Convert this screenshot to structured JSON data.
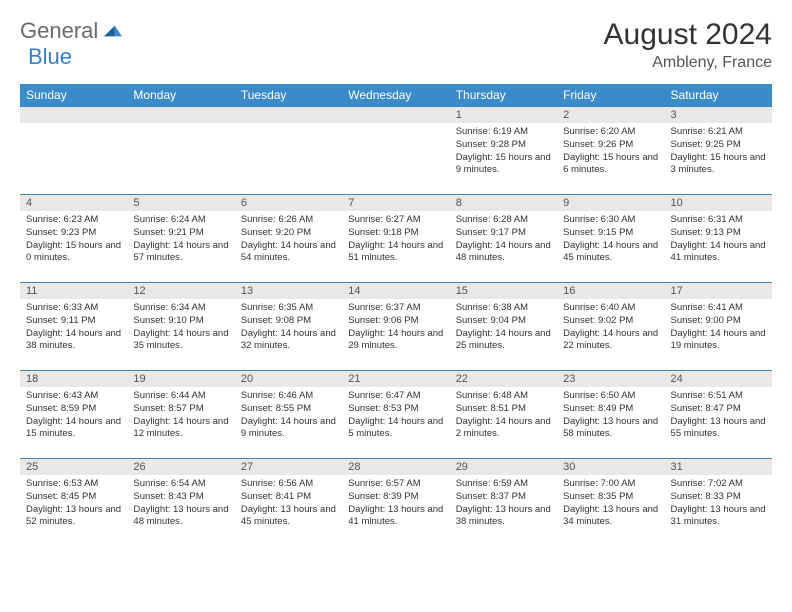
{
  "logo": {
    "text1": "General",
    "text2": "Blue"
  },
  "title": "August 2024",
  "location": "Ambleny, France",
  "weekdays": [
    "Sunday",
    "Monday",
    "Tuesday",
    "Wednesday",
    "Thursday",
    "Friday",
    "Saturday"
  ],
  "colors": {
    "header_bg": "#3b8bc9",
    "daynum_bg": "#e8e8e8",
    "border": "#3b8bc9",
    "logo_gray": "#6b6b6b",
    "logo_blue": "#3b7fc4"
  },
  "weeks": [
    [
      {
        "n": "",
        "sunrise": "",
        "sunset": "",
        "daylight": ""
      },
      {
        "n": "",
        "sunrise": "",
        "sunset": "",
        "daylight": ""
      },
      {
        "n": "",
        "sunrise": "",
        "sunset": "",
        "daylight": ""
      },
      {
        "n": "",
        "sunrise": "",
        "sunset": "",
        "daylight": ""
      },
      {
        "n": "1",
        "sunrise": "Sunrise: 6:19 AM",
        "sunset": "Sunset: 9:28 PM",
        "daylight": "Daylight: 15 hours and 9 minutes."
      },
      {
        "n": "2",
        "sunrise": "Sunrise: 6:20 AM",
        "sunset": "Sunset: 9:26 PM",
        "daylight": "Daylight: 15 hours and 6 minutes."
      },
      {
        "n": "3",
        "sunrise": "Sunrise: 6:21 AM",
        "sunset": "Sunset: 9:25 PM",
        "daylight": "Daylight: 15 hours and 3 minutes."
      }
    ],
    [
      {
        "n": "4",
        "sunrise": "Sunrise: 6:23 AM",
        "sunset": "Sunset: 9:23 PM",
        "daylight": "Daylight: 15 hours and 0 minutes."
      },
      {
        "n": "5",
        "sunrise": "Sunrise: 6:24 AM",
        "sunset": "Sunset: 9:21 PM",
        "daylight": "Daylight: 14 hours and 57 minutes."
      },
      {
        "n": "6",
        "sunrise": "Sunrise: 6:26 AM",
        "sunset": "Sunset: 9:20 PM",
        "daylight": "Daylight: 14 hours and 54 minutes."
      },
      {
        "n": "7",
        "sunrise": "Sunrise: 6:27 AM",
        "sunset": "Sunset: 9:18 PM",
        "daylight": "Daylight: 14 hours and 51 minutes."
      },
      {
        "n": "8",
        "sunrise": "Sunrise: 6:28 AM",
        "sunset": "Sunset: 9:17 PM",
        "daylight": "Daylight: 14 hours and 48 minutes."
      },
      {
        "n": "9",
        "sunrise": "Sunrise: 6:30 AM",
        "sunset": "Sunset: 9:15 PM",
        "daylight": "Daylight: 14 hours and 45 minutes."
      },
      {
        "n": "10",
        "sunrise": "Sunrise: 6:31 AM",
        "sunset": "Sunset: 9:13 PM",
        "daylight": "Daylight: 14 hours and 41 minutes."
      }
    ],
    [
      {
        "n": "11",
        "sunrise": "Sunrise: 6:33 AM",
        "sunset": "Sunset: 9:11 PM",
        "daylight": "Daylight: 14 hours and 38 minutes."
      },
      {
        "n": "12",
        "sunrise": "Sunrise: 6:34 AM",
        "sunset": "Sunset: 9:10 PM",
        "daylight": "Daylight: 14 hours and 35 minutes."
      },
      {
        "n": "13",
        "sunrise": "Sunrise: 6:35 AM",
        "sunset": "Sunset: 9:08 PM",
        "daylight": "Daylight: 14 hours and 32 minutes."
      },
      {
        "n": "14",
        "sunrise": "Sunrise: 6:37 AM",
        "sunset": "Sunset: 9:06 PM",
        "daylight": "Daylight: 14 hours and 29 minutes."
      },
      {
        "n": "15",
        "sunrise": "Sunrise: 6:38 AM",
        "sunset": "Sunset: 9:04 PM",
        "daylight": "Daylight: 14 hours and 25 minutes."
      },
      {
        "n": "16",
        "sunrise": "Sunrise: 6:40 AM",
        "sunset": "Sunset: 9:02 PM",
        "daylight": "Daylight: 14 hours and 22 minutes."
      },
      {
        "n": "17",
        "sunrise": "Sunrise: 6:41 AM",
        "sunset": "Sunset: 9:00 PM",
        "daylight": "Daylight: 14 hours and 19 minutes."
      }
    ],
    [
      {
        "n": "18",
        "sunrise": "Sunrise: 6:43 AM",
        "sunset": "Sunset: 8:59 PM",
        "daylight": "Daylight: 14 hours and 15 minutes."
      },
      {
        "n": "19",
        "sunrise": "Sunrise: 6:44 AM",
        "sunset": "Sunset: 8:57 PM",
        "daylight": "Daylight: 14 hours and 12 minutes."
      },
      {
        "n": "20",
        "sunrise": "Sunrise: 6:46 AM",
        "sunset": "Sunset: 8:55 PM",
        "daylight": "Daylight: 14 hours and 9 minutes."
      },
      {
        "n": "21",
        "sunrise": "Sunrise: 6:47 AM",
        "sunset": "Sunset: 8:53 PM",
        "daylight": "Daylight: 14 hours and 5 minutes."
      },
      {
        "n": "22",
        "sunrise": "Sunrise: 6:48 AM",
        "sunset": "Sunset: 8:51 PM",
        "daylight": "Daylight: 14 hours and 2 minutes."
      },
      {
        "n": "23",
        "sunrise": "Sunrise: 6:50 AM",
        "sunset": "Sunset: 8:49 PM",
        "daylight": "Daylight: 13 hours and 58 minutes."
      },
      {
        "n": "24",
        "sunrise": "Sunrise: 6:51 AM",
        "sunset": "Sunset: 8:47 PM",
        "daylight": "Daylight: 13 hours and 55 minutes."
      }
    ],
    [
      {
        "n": "25",
        "sunrise": "Sunrise: 6:53 AM",
        "sunset": "Sunset: 8:45 PM",
        "daylight": "Daylight: 13 hours and 52 minutes."
      },
      {
        "n": "26",
        "sunrise": "Sunrise: 6:54 AM",
        "sunset": "Sunset: 8:43 PM",
        "daylight": "Daylight: 13 hours and 48 minutes."
      },
      {
        "n": "27",
        "sunrise": "Sunrise: 6:56 AM",
        "sunset": "Sunset: 8:41 PM",
        "daylight": "Daylight: 13 hours and 45 minutes."
      },
      {
        "n": "28",
        "sunrise": "Sunrise: 6:57 AM",
        "sunset": "Sunset: 8:39 PM",
        "daylight": "Daylight: 13 hours and 41 minutes."
      },
      {
        "n": "29",
        "sunrise": "Sunrise: 6:59 AM",
        "sunset": "Sunset: 8:37 PM",
        "daylight": "Daylight: 13 hours and 38 minutes."
      },
      {
        "n": "30",
        "sunrise": "Sunrise: 7:00 AM",
        "sunset": "Sunset: 8:35 PM",
        "daylight": "Daylight: 13 hours and 34 minutes."
      },
      {
        "n": "31",
        "sunrise": "Sunrise: 7:02 AM",
        "sunset": "Sunset: 8:33 PM",
        "daylight": "Daylight: 13 hours and 31 minutes."
      }
    ]
  ]
}
